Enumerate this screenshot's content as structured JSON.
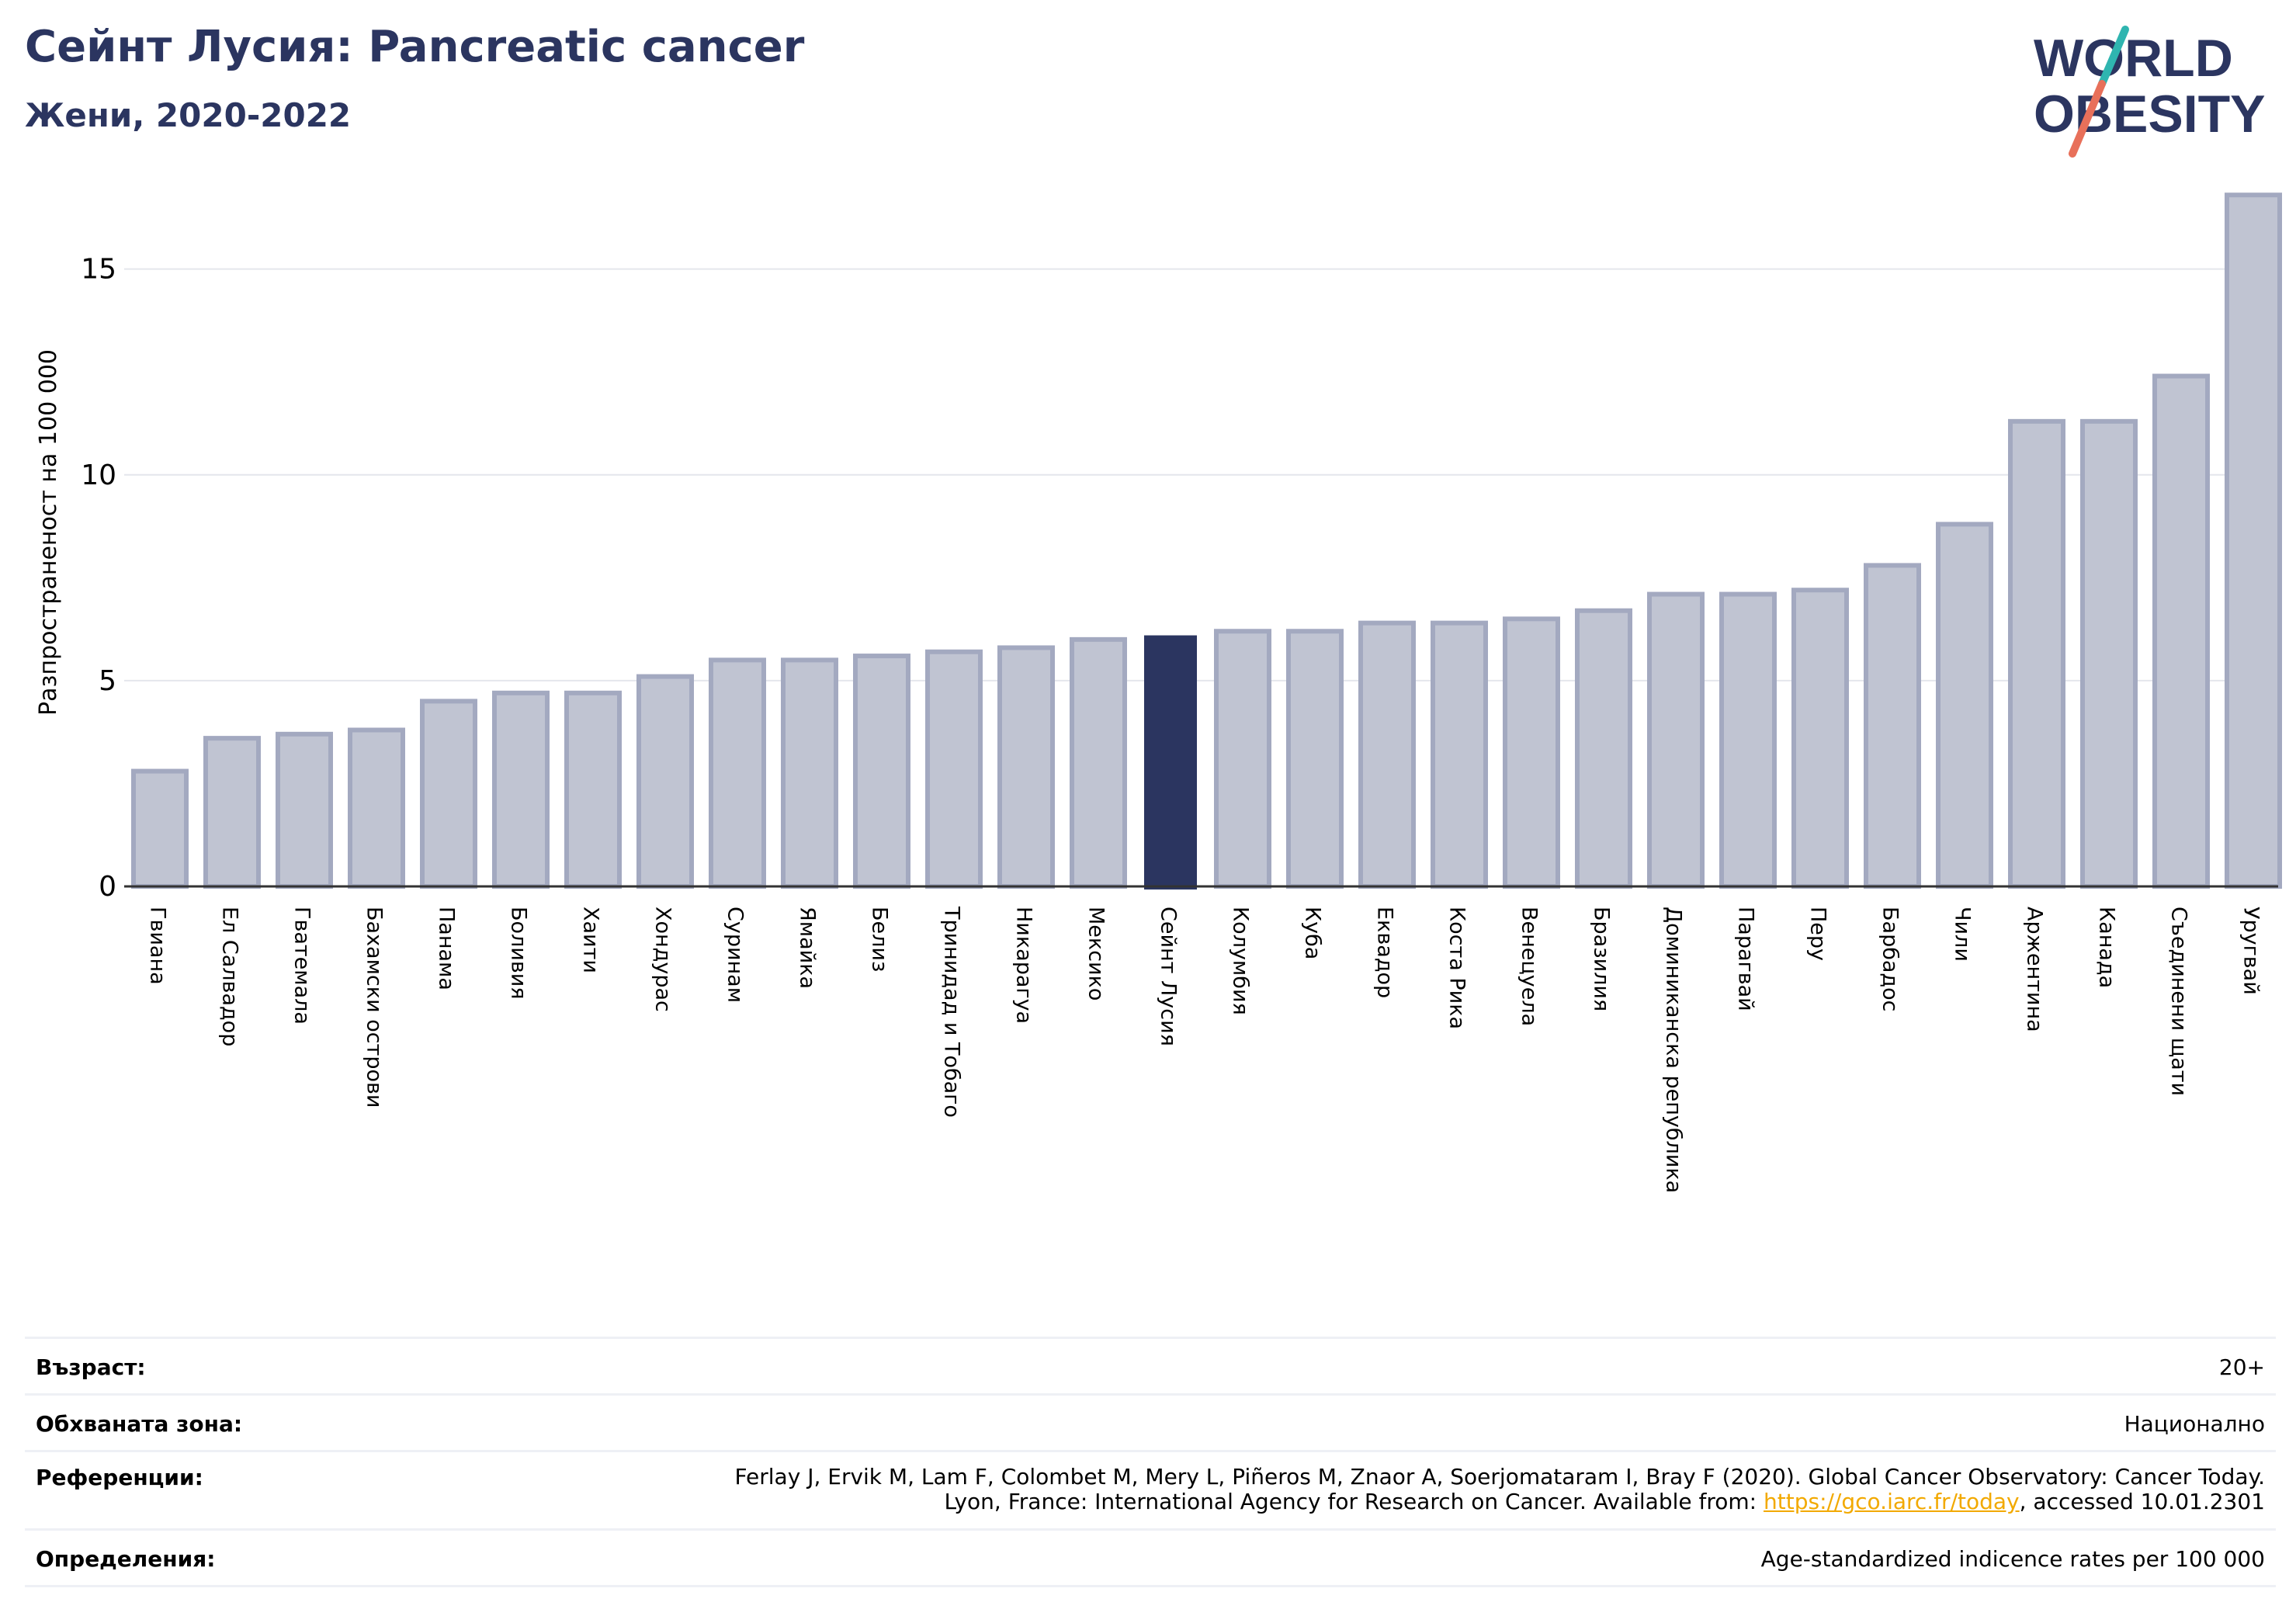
{
  "header": {
    "title": "Сейнт Лусия: Pancreatic cancer",
    "subtitle": "Жени, 2020-2022"
  },
  "logo": {
    "line1": "WORLD",
    "line2": "OBESITY",
    "colors": {
      "text": "#2b3560",
      "slash_top": "#2fb5b0",
      "slash_bottom": "#e8705a"
    }
  },
  "colors": {
    "bar": "#c0c4d2",
    "bar_edge": "#a3a9c0",
    "highlight": "#2b3560",
    "grid": "#e4e6ec",
    "axis": "#333333"
  },
  "chart_data": {
    "type": "bar",
    "title": "Сейнт Лусия: Pancreatic cancer",
    "subtitle": "Жени, 2020-2022",
    "ylabel": "Разпространеност  на 100 000",
    "xlabel": "",
    "ylim": [
      0,
      17.2
    ],
    "yticks": [
      0,
      5,
      10,
      15
    ],
    "grid": true,
    "highlight": "Сейнт Лусия",
    "categories": [
      "Гвиана",
      "Ел Салвадор",
      "Гватемала",
      "Бахамски острови",
      "Панама",
      "Боливия",
      "Хаити",
      "Хондурас",
      "Суринам",
      "Ямайка",
      "Белиз",
      "Тринидад и Тобаго",
      "Никарагуа",
      "Мексико",
      "Сейнт Лусия",
      "Колумбия",
      "Куба",
      "Еквадор",
      "Коста Рика",
      "Венецуела",
      "Бразилия",
      "Доминиканска република",
      "Парагвай",
      "Перу",
      "Барбадос",
      "Чили",
      "Аржентина",
      "Канада",
      "Съединени щати",
      "Уругвай"
    ],
    "values": [
      2.8,
      3.6,
      3.7,
      3.8,
      4.5,
      4.7,
      4.7,
      5.1,
      5.5,
      5.5,
      5.6,
      5.7,
      5.8,
      6.0,
      6.1,
      6.2,
      6.2,
      6.4,
      6.4,
      6.5,
      6.7,
      7.1,
      7.1,
      7.2,
      7.8,
      8.8,
      11.3,
      11.3,
      12.4,
      16.8
    ]
  },
  "meta": {
    "age_label": "Възраст:",
    "age_value": "20+",
    "coverage_label": "Обхваната зона:",
    "coverage_value": "Национално",
    "references_label": "Референции:",
    "references_line1": "Ferlay J, Ervik M, Lam F, Colombet M, Mery L, Piñeros M, Znaor A, Soerjomataram I, Bray F (2020). Global Cancer Observatory: Cancer Today.",
    "references_line2_pre": "Lyon, France: International Agency for Research on Cancer. Available from: ",
    "references_link": "https://gco.iarc.fr/today",
    "references_line2_post": ", accessed 10.01.2301",
    "definitions_label": "Определения:",
    "definitions_value": "Age-standardized indicence rates per 100 000"
  }
}
